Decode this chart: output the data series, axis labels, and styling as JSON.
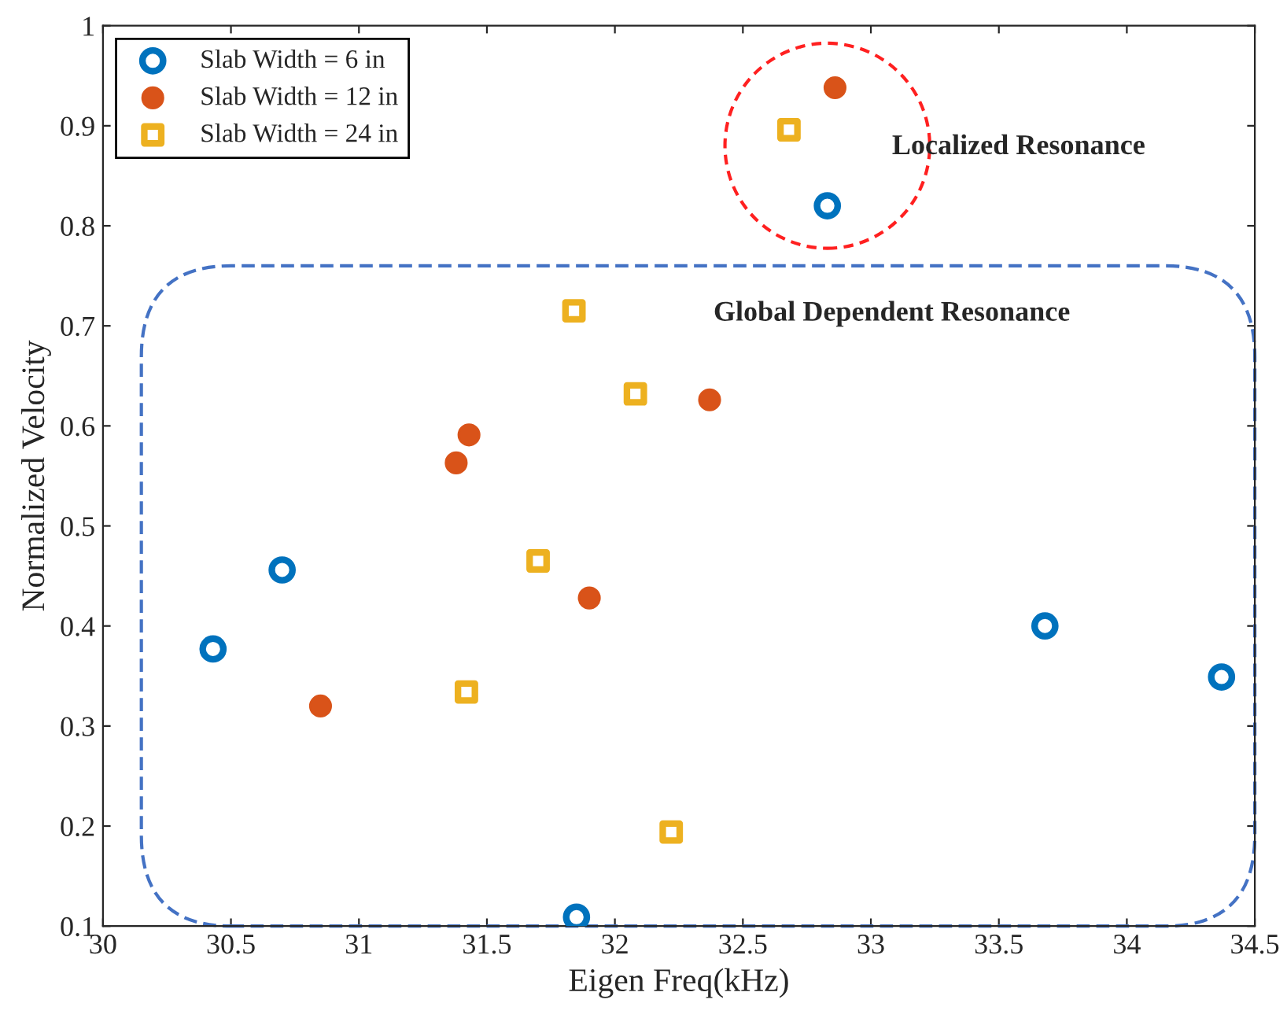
{
  "chart_data": {
    "type": "scatter",
    "xlabel": "Eigen Freq(kHz)",
    "ylabel": "Normalized Velocity",
    "xlim": [
      30,
      34.5
    ],
    "xticks": [
      30,
      30.5,
      31,
      31.5,
      32,
      32.5,
      33,
      33.5,
      34,
      34.5
    ],
    "ylim": [
      0.1,
      1
    ],
    "yticks": [
      0.1,
      0.2,
      0.3,
      0.4,
      0.5,
      0.6,
      0.7,
      0.8,
      0.9,
      1
    ],
    "grid": false,
    "legend": "top left",
    "series": [
      {
        "name": "Slab Width = 6 in",
        "color": "#0072bd",
        "marker": "circle",
        "x": [
          30.43,
          30.7,
          31.85,
          32.83,
          33.68,
          34.37
        ],
        "values": [
          0.377,
          0.456,
          0.109,
          0.82,
          0.4,
          0.349
        ]
      },
      {
        "name": "Slab Width = 12 in",
        "color": "#d95319",
        "marker": "circle",
        "x": [
          30.85,
          31.38,
          31.43,
          31.9,
          32.37,
          32.86
        ],
        "values": [
          0.32,
          0.563,
          0.591,
          0.428,
          0.626,
          0.938
        ]
      },
      {
        "name": "Slab Width = 24 in",
        "color": "#edb120",
        "marker": "square",
        "x": [
          31.42,
          31.7,
          31.84,
          32.08,
          32.22,
          32.68
        ],
        "values": [
          0.334,
          0.465,
          0.715,
          0.632,
          0.194,
          0.896
        ]
      }
    ],
    "annotations": [
      "Localized Resonance",
      "Global Dependent Resonance"
    ]
  }
}
